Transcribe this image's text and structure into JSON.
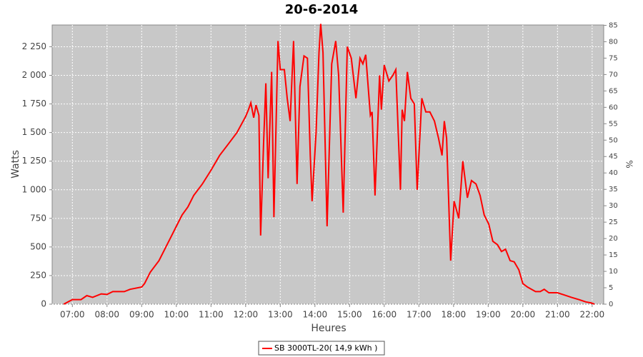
{
  "chart_data": {
    "type": "line",
    "title": "20-6-2014",
    "x_label": "Heures",
    "y_label": "Watts",
    "y2_label": "%",
    "x": [
      "06:45",
      "07:00",
      "07:15",
      "07:25",
      "07:35",
      "07:50",
      "08:00",
      "08:10",
      "08:30",
      "08:40",
      "09:00",
      "09:05",
      "09:15",
      "09:30",
      "09:40",
      "09:50",
      "10:00",
      "10:10",
      "10:20",
      "10:30",
      "10:45",
      "11:00",
      "11:15",
      "11:30",
      "11:45",
      "12:00",
      "12:05",
      "12:09",
      "12:14",
      "12:18",
      "12:23",
      "12:26",
      "12:31",
      "12:35",
      "12:39",
      "12:45",
      "12:49",
      "12:56",
      "13:00",
      "13:07",
      "13:12",
      "13:17",
      "13:23",
      "13:29",
      "13:34",
      "13:41",
      "13:47",
      "13:52",
      "13:55",
      "14:02",
      "14:07",
      "14:10",
      "14:14",
      "14:21",
      "14:29",
      "14:36",
      "14:41",
      "14:49",
      "14:56",
      "15:03",
      "15:11",
      "15:18",
      "15:23",
      "15:28",
      "15:36",
      "15:39",
      "15:44",
      "15:52",
      "15:55",
      "16:00",
      "16:08",
      "16:15",
      "16:20",
      "16:28",
      "16:31",
      "16:35",
      "16:40",
      "16:46",
      "16:52",
      "16:57",
      "17:05",
      "17:12",
      "17:19",
      "17:27",
      "17:34",
      "17:40",
      "17:44",
      "17:48",
      "17:55",
      "18:01",
      "18:09",
      "18:16",
      "18:24",
      "18:31",
      "18:39",
      "18:46",
      "18:53",
      "19:01",
      "19:08",
      "19:16",
      "19:23",
      "19:30",
      "19:38",
      "19:45",
      "19:53",
      "20:00",
      "20:08",
      "20:15",
      "20:22",
      "20:30",
      "20:37",
      "20:45",
      "21:00",
      "21:12",
      "21:24",
      "21:37",
      "21:49",
      "21:59",
      "22:04"
    ],
    "series": [
      {
        "name": "SB 3000TL-20( 14,9 kWh )",
        "color": "#ff0000",
        "values": [
          0,
          40,
          40,
          75,
          60,
          90,
          85,
          110,
          110,
          130,
          150,
          180,
          280,
          380,
          480,
          580,
          680,
          780,
          850,
          950,
          1050,
          1170,
          1300,
          1400,
          1500,
          1640,
          1700,
          1760,
          1630,
          1740,
          1650,
          600,
          1400,
          1930,
          1100,
          2030,
          760,
          2300,
          2050,
          2050,
          1800,
          1600,
          2300,
          1050,
          1900,
          2170,
          2150,
          1300,
          900,
          1500,
          2200,
          2450,
          2200,
          680,
          2100,
          2300,
          2000,
          800,
          2250,
          2150,
          1800,
          2150,
          2100,
          2180,
          1650,
          1680,
          950,
          2000,
          1700,
          2090,
          1950,
          2000,
          2050,
          1000,
          1700,
          1600,
          2030,
          1800,
          1750,
          1000,
          1800,
          1680,
          1680,
          1600,
          1450,
          1300,
          1600,
          1450,
          380,
          900,
          750,
          1250,
          930,
          1080,
          1050,
          950,
          780,
          700,
          550,
          520,
          460,
          480,
          380,
          370,
          300,
          180,
          150,
          130,
          110,
          110,
          130,
          100,
          100,
          80,
          60,
          40,
          20,
          10,
          0
        ]
      }
    ],
    "xlim": [
      "06:25",
      "22:20"
    ],
    "xticks": [
      "07:00",
      "08:00",
      "09:00",
      "10:00",
      "11:00",
      "12:00",
      "13:00",
      "14:00",
      "15:00",
      "16:00",
      "17:00",
      "18:00",
      "19:00",
      "20:00",
      "21:00",
      "22:00"
    ],
    "ylim": [
      0,
      2440
    ],
    "yticks": [
      0,
      250,
      500,
      750,
      {
        "value": 1000,
        "label": "1 000"
      },
      {
        "value": 1250,
        "label": "1 250"
      },
      {
        "value": 1500,
        "label": "1 500"
      },
      {
        "value": 1750,
        "label": "1 750"
      },
      {
        "value": 2000,
        "label": "2 000"
      },
      {
        "value": 2250,
        "label": "2 250"
      }
    ],
    "y2lim": [
      0,
      85.1
    ],
    "y2ticks": [
      0,
      5,
      10,
      15,
      20,
      25,
      30,
      35,
      40,
      45,
      50,
      55,
      60,
      65,
      70,
      75,
      80,
      85
    ],
    "grid": true
  }
}
